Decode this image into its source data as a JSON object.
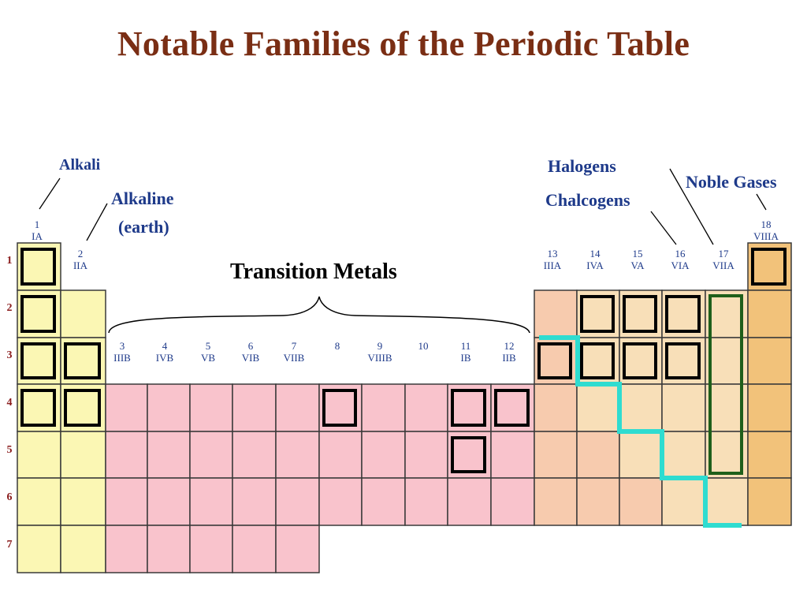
{
  "title": "Notable Families of the Periodic Table",
  "labels": {
    "alkali": "Alkali",
    "alkaline_line1": "Alkaline",
    "alkaline_line2": "(earth)",
    "transition_metals": "Transition Metals",
    "halogens": "Halogens",
    "chalcogens": "Chalcogens",
    "noble_gases": "Noble Gases"
  },
  "groups": [
    {
      "number": "1",
      "roman": "IA"
    },
    {
      "number": "2",
      "roman": "IIA"
    },
    {
      "number": "3",
      "roman": "IIIB"
    },
    {
      "number": "4",
      "roman": "IVB"
    },
    {
      "number": "5",
      "roman": "VB"
    },
    {
      "number": "6",
      "roman": "VIB"
    },
    {
      "number": "7",
      "roman": "VIIB"
    },
    {
      "number": "8",
      "roman": ""
    },
    {
      "number": "9",
      "roman": "VIIIB"
    },
    {
      "number": "10",
      "roman": ""
    },
    {
      "number": "11",
      "roman": "IB"
    },
    {
      "number": "12",
      "roman": "IIB"
    },
    {
      "number": "13",
      "roman": "IIIA"
    },
    {
      "number": "14",
      "roman": "IVA"
    },
    {
      "number": "15",
      "roman": "VA"
    },
    {
      "number": "16",
      "roman": "VIA"
    },
    {
      "number": "17",
      "roman": "VIIA"
    },
    {
      "number": "18",
      "roman": "VIIIA"
    }
  ],
  "periods": [
    "1",
    "2",
    "3",
    "4",
    "5",
    "6",
    "7"
  ],
  "colors": {
    "s_block": "#fbf7b4",
    "d_block": "#f9c3cc",
    "p_metal": "#f7cbae",
    "p_nonmetal": "#f8dfb8",
    "noble": "#f2c27a",
    "group_label": "#1e3a8a",
    "period_label": "#8a1c1c",
    "title": "#7a2e14",
    "stair_line": "#2fdcd0",
    "halogen_box": "#1f5f1a"
  }
}
